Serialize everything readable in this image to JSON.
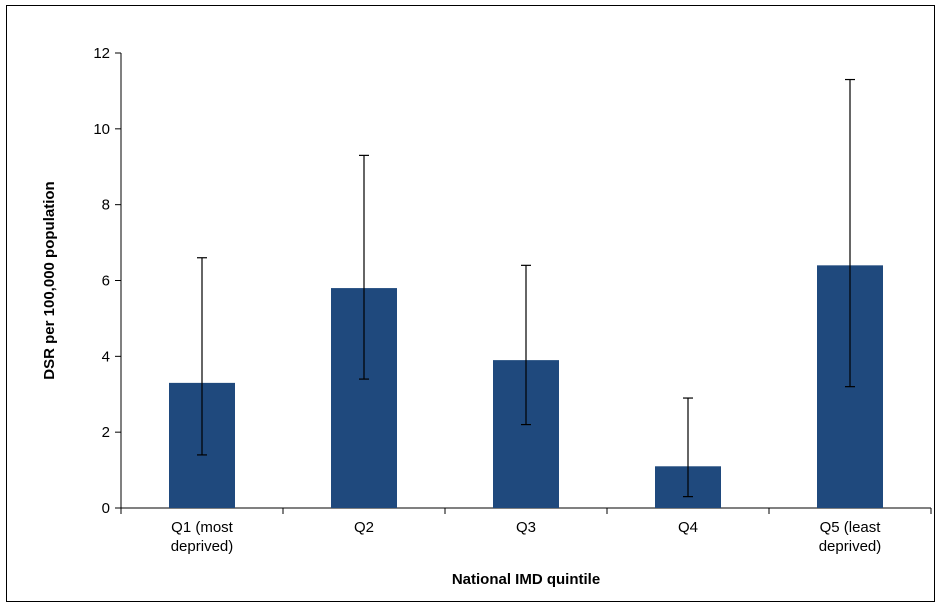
{
  "chart_data": {
    "type": "bar",
    "categories": [
      [
        "Q1 (most",
        "deprived)"
      ],
      [
        "Q2"
      ],
      [
        "Q3"
      ],
      [
        "Q4"
      ],
      [
        "Q5 (least",
        "deprived)"
      ]
    ],
    "values": [
      3.3,
      5.8,
      3.9,
      1.1,
      6.4
    ],
    "error_low": [
      1.4,
      3.4,
      2.2,
      0.3,
      3.2
    ],
    "error_high": [
      6.6,
      9.3,
      6.4,
      2.9,
      11.3
    ],
    "xlabel": "National IMD quintile",
    "ylabel": "DSR per 100,000 population",
    "ylim": [
      0,
      12
    ],
    "yticks": [
      0,
      2,
      4,
      6,
      8,
      10,
      12
    ],
    "grid": false,
    "bar_color": "#1f497d"
  }
}
